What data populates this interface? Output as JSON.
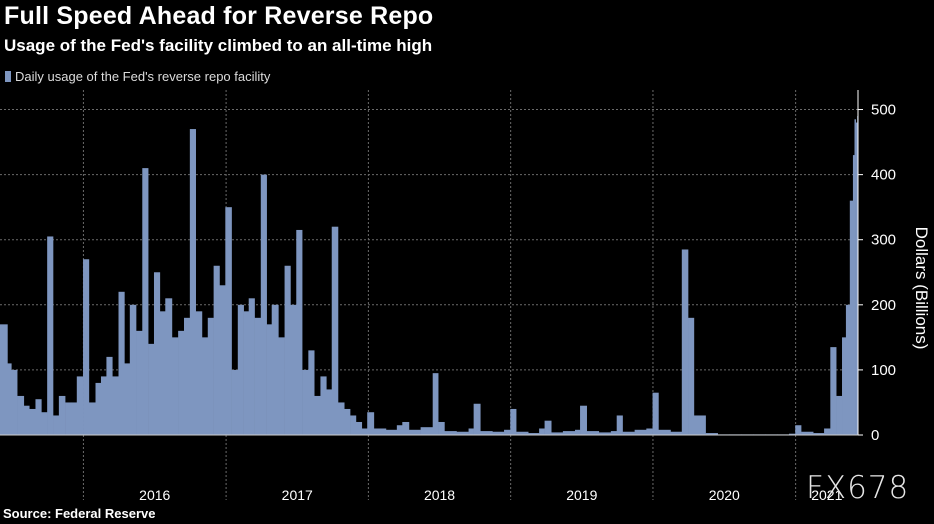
{
  "header": {
    "title": "Full Speed Ahead for Reverse Repo",
    "subtitle": "Usage of the Fed's facility climbed to an all-time high"
  },
  "footer": {
    "source": "Source: Federal Reserve",
    "watermark": "FX678"
  },
  "chart_data": {
    "type": "bar",
    "title": "Full Speed Ahead for Reverse Repo",
    "subtitle": "Usage of the Fed's facility climbed to an all-time high",
    "ylabel": "Dollars (Billions)",
    "xlabel": "",
    "ylim": [
      0,
      530
    ],
    "yticks": [
      0,
      100,
      200,
      300,
      400,
      500
    ],
    "xlim": [
      "2015-06-01",
      "2021-06-10"
    ],
    "x_year_labels": [
      "2016",
      "2017",
      "2018",
      "2019",
      "2020",
      "2021"
    ],
    "legend": "top-left",
    "grid": true,
    "color": "#7e96c0",
    "series": [
      {
        "name": "Daily usage of the Fed's reverse repo facility",
        "x": [
          "2015-06-01",
          "2015-06-20",
          "2015-06-30",
          "2015-07-15",
          "2015-08-01",
          "2015-08-15",
          "2015-08-31",
          "2015-09-15",
          "2015-09-30",
          "2015-10-15",
          "2015-10-30",
          "2015-11-15",
          "2015-11-30",
          "2015-12-15",
          "2015-12-31",
          "2016-01-15",
          "2016-02-01",
          "2016-02-15",
          "2016-02-29",
          "2016-03-15",
          "2016-03-31",
          "2016-04-15",
          "2016-04-29",
          "2016-05-15",
          "2016-05-31",
          "2016-06-15",
          "2016-06-30",
          "2016-07-15",
          "2016-07-29",
          "2016-08-15",
          "2016-08-31",
          "2016-09-15",
          "2016-09-30",
          "2016-10-15",
          "2016-10-31",
          "2016-11-15",
          "2016-11-30",
          "2016-12-15",
          "2016-12-30",
          "2017-01-15",
          "2017-01-31",
          "2017-02-15",
          "2017-02-28",
          "2017-03-15",
          "2017-03-31",
          "2017-04-15",
          "2017-04-28",
          "2017-05-15",
          "2017-05-31",
          "2017-06-15",
          "2017-06-30",
          "2017-07-15",
          "2017-07-31",
          "2017-08-15",
          "2017-08-31",
          "2017-09-15",
          "2017-09-29",
          "2017-10-15",
          "2017-10-31",
          "2017-11-15",
          "2017-11-30",
          "2017-12-15",
          "2017-12-29",
          "2018-01-15",
          "2018-02-15",
          "2018-03-15",
          "2018-03-29",
          "2018-04-15",
          "2018-05-15",
          "2018-06-15",
          "2018-06-29",
          "2018-07-15",
          "2018-08-15",
          "2018-09-15",
          "2018-09-28",
          "2018-10-15",
          "2018-11-15",
          "2018-12-15",
          "2018-12-31",
          "2019-01-15",
          "2019-02-15",
          "2019-03-15",
          "2019-03-29",
          "2019-04-15",
          "2019-05-15",
          "2019-06-15",
          "2019-06-28",
          "2019-07-15",
          "2019-08-15",
          "2019-09-15",
          "2019-09-30",
          "2019-10-15",
          "2019-11-15",
          "2019-12-15",
          "2019-12-31",
          "2020-01-15",
          "2020-02-15",
          "2020-03-15",
          "2020-03-31",
          "2020-04-15",
          "2020-05-15",
          "2020-06-15",
          "2020-07-15",
          "2020-08-15",
          "2020-09-15",
          "2020-10-15",
          "2020-11-15",
          "2020-12-15",
          "2020-12-31",
          "2021-01-15",
          "2021-02-15",
          "2021-03-15",
          "2021-03-31",
          "2021-04-15",
          "2021-04-30",
          "2021-05-10",
          "2021-05-20",
          "2021-05-28",
          "2021-06-01",
          "2021-06-04",
          "2021-06-08",
          "2021-06-10"
        ],
        "values": [
          170,
          110,
          100,
          60,
          45,
          40,
          55,
          35,
          305,
          30,
          60,
          50,
          50,
          90,
          270,
          50,
          80,
          90,
          120,
          90,
          220,
          110,
          200,
          160,
          410,
          140,
          250,
          190,
          210,
          150,
          160,
          180,
          470,
          190,
          150,
          180,
          260,
          230,
          350,
          100,
          200,
          190,
          210,
          180,
          400,
          170,
          200,
          150,
          260,
          200,
          315,
          100,
          130,
          60,
          90,
          70,
          320,
          50,
          40,
          30,
          20,
          10,
          35,
          10,
          8,
          15,
          20,
          8,
          12,
          95,
          20,
          6,
          5,
          10,
          48,
          6,
          5,
          8,
          40,
          5,
          3,
          10,
          22,
          4,
          6,
          8,
          45,
          6,
          4,
          6,
          30,
          5,
          8,
          10,
          65,
          8,
          5,
          285,
          180,
          30,
          3,
          1,
          1,
          1,
          1,
          1,
          1,
          2,
          15,
          5,
          3,
          10,
          135,
          60,
          150,
          200,
          360,
          430,
          485,
          480,
          490,
          0
        ]
      }
    ]
  }
}
